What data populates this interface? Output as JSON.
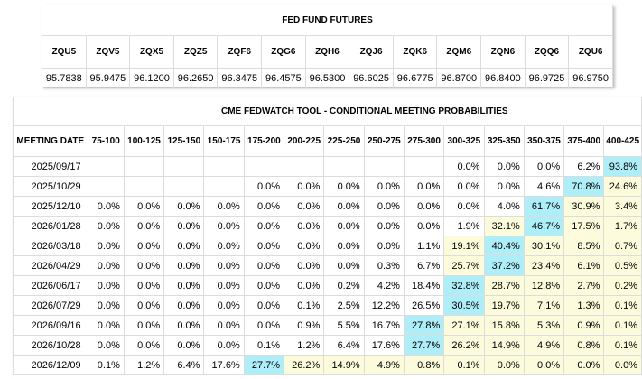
{
  "futures": {
    "title": "FED FUND FUTURES",
    "contracts": [
      {
        "code": "ZQU5",
        "price": "95.7838"
      },
      {
        "code": "ZQV5",
        "price": "95.9475"
      },
      {
        "code": "ZQX5",
        "price": "96.1200"
      },
      {
        "code": "ZQZ5",
        "price": "96.2650"
      },
      {
        "code": "ZQF6",
        "price": "96.3475"
      },
      {
        "code": "ZQG6",
        "price": "96.4575"
      },
      {
        "code": "ZQH6",
        "price": "96.5300"
      },
      {
        "code": "ZQJ6",
        "price": "96.6025"
      },
      {
        "code": "ZQK6",
        "price": "96.6775"
      },
      {
        "code": "ZQM6",
        "price": "96.8700"
      },
      {
        "code": "ZQN6",
        "price": "96.8400"
      },
      {
        "code": "ZQQ6",
        "price": "96.9725"
      },
      {
        "code": "ZQU6",
        "price": "96.9750"
      }
    ]
  },
  "fedwatch": {
    "title": "CME FEDWATCH TOOL - CONDITIONAL MEETING PROBABILITIES",
    "date_header": "MEETING DATE",
    "ranges": [
      "75-100",
      "100-125",
      "125-150",
      "150-175",
      "175-200",
      "200-225",
      "225-250",
      "250-275",
      "275-300",
      "300-325",
      "325-350",
      "350-375",
      "375-400",
      "400-425"
    ],
    "colors": {
      "highlight_yellow": "#fcfcdc",
      "highlight_cyan": "#aeeef8"
    },
    "rows": [
      {
        "date": "2025/09/17",
        "values": [
          "",
          "",
          "",
          "",
          "",
          "",
          "",
          "",
          "",
          "0.0%",
          "0.0%",
          "0.0%",
          "6.2%",
          "93.8%"
        ],
        "hl": [
          "",
          "",
          "",
          "",
          "",
          "",
          "",
          "",
          "",
          "",
          "",
          "",
          "",
          "c"
        ]
      },
      {
        "date": "2025/10/29",
        "values": [
          "",
          "",
          "",
          "",
          "0.0%",
          "0.0%",
          "0.0%",
          "0.0%",
          "0.0%",
          "0.0%",
          "0.0%",
          "4.6%",
          "70.8%",
          "24.6%"
        ],
        "hl": [
          "",
          "",
          "",
          "",
          "",
          "",
          "",
          "",
          "",
          "",
          "",
          "",
          "c",
          "y"
        ]
      },
      {
        "date": "2025/12/10",
        "values": [
          "0.0%",
          "0.0%",
          "0.0%",
          "0.0%",
          "0.0%",
          "0.0%",
          "0.0%",
          "0.0%",
          "0.0%",
          "0.0%",
          "4.0%",
          "61.7%",
          "30.9%",
          "3.4%"
        ],
        "hl": [
          "",
          "",
          "",
          "",
          "",
          "",
          "",
          "",
          "",
          "",
          "",
          "c",
          "y",
          "y"
        ]
      },
      {
        "date": "2026/01/28",
        "values": [
          "0.0%",
          "0.0%",
          "0.0%",
          "0.0%",
          "0.0%",
          "0.0%",
          "0.0%",
          "0.0%",
          "0.0%",
          "1.9%",
          "32.1%",
          "46.7%",
          "17.5%",
          "1.7%"
        ],
        "hl": [
          "",
          "",
          "",
          "",
          "",
          "",
          "",
          "",
          "",
          "",
          "y",
          "c",
          "y",
          "y"
        ]
      },
      {
        "date": "2026/03/18",
        "values": [
          "0.0%",
          "0.0%",
          "0.0%",
          "0.0%",
          "0.0%",
          "0.0%",
          "0.0%",
          "0.0%",
          "1.1%",
          "19.1%",
          "40.4%",
          "30.1%",
          "8.5%",
          "0.7%"
        ],
        "hl": [
          "",
          "",
          "",
          "",
          "",
          "",
          "",
          "",
          "",
          "y",
          "c",
          "y",
          "y",
          "y"
        ]
      },
      {
        "date": "2026/04/29",
        "values": [
          "0.0%",
          "0.0%",
          "0.0%",
          "0.0%",
          "0.0%",
          "0.0%",
          "0.0%",
          "0.3%",
          "6.7%",
          "25.7%",
          "37.2%",
          "23.4%",
          "6.1%",
          "0.5%"
        ],
        "hl": [
          "",
          "",
          "",
          "",
          "",
          "",
          "",
          "",
          "",
          "y",
          "c",
          "y",
          "y",
          "y"
        ]
      },
      {
        "date": "2026/06/17",
        "values": [
          "0.0%",
          "0.0%",
          "0.0%",
          "0.0%",
          "0.0%",
          "0.0%",
          "0.2%",
          "4.2%",
          "18.4%",
          "32.8%",
          "28.7%",
          "12.8%",
          "2.7%",
          "0.2%"
        ],
        "hl": [
          "",
          "",
          "",
          "",
          "",
          "",
          "",
          "",
          "",
          "c",
          "y",
          "y",
          "y",
          "y"
        ]
      },
      {
        "date": "2026/07/29",
        "values": [
          "0.0%",
          "0.0%",
          "0.0%",
          "0.0%",
          "0.0%",
          "0.1%",
          "2.5%",
          "12.2%",
          "26.5%",
          "30.5%",
          "19.7%",
          "7.1%",
          "1.3%",
          "0.1%"
        ],
        "hl": [
          "",
          "",
          "",
          "",
          "",
          "",
          "",
          "",
          "",
          "c",
          "y",
          "y",
          "y",
          "y"
        ]
      },
      {
        "date": "2026/09/16",
        "values": [
          "0.0%",
          "0.0%",
          "0.0%",
          "0.0%",
          "0.0%",
          "0.9%",
          "5.5%",
          "16.7%",
          "27.8%",
          "27.1%",
          "15.8%",
          "5.3%",
          "0.9%",
          "0.1%"
        ],
        "hl": [
          "",
          "",
          "",
          "",
          "",
          "",
          "",
          "",
          "c",
          "y",
          "y",
          "y",
          "y",
          "y"
        ]
      },
      {
        "date": "2026/10/28",
        "values": [
          "0.0%",
          "0.0%",
          "0.0%",
          "0.0%",
          "0.1%",
          "1.2%",
          "6.4%",
          "17.6%",
          "27.7%",
          "26.2%",
          "14.9%",
          "4.9%",
          "0.8%",
          "0.1%"
        ],
        "hl": [
          "",
          "",
          "",
          "",
          "",
          "",
          "",
          "",
          "c",
          "y",
          "y",
          "y",
          "y",
          "y"
        ]
      },
      {
        "date": "2026/12/09",
        "values": [
          "0.1%",
          "1.2%",
          "6.4%",
          "17.6%",
          "27.7%",
          "26.2%",
          "14.9%",
          "4.9%",
          "0.8%",
          "0.1%",
          "0.0%",
          "0.0%",
          "0.0%",
          "0.0%"
        ],
        "hl": [
          "",
          "",
          "",
          "",
          "c",
          "y",
          "y",
          "y",
          "y",
          "y",
          "y",
          "y",
          "y",
          "y"
        ]
      }
    ]
  }
}
